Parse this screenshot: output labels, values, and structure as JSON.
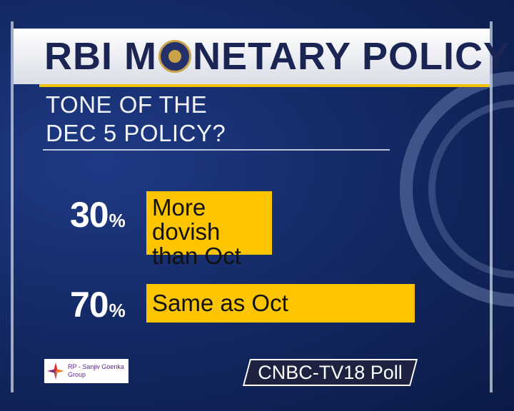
{
  "header": {
    "title_before_logo": "RBI M",
    "title_after_logo": "NETARY POLICY"
  },
  "question": {
    "lines": [
      "TONE OF THE",
      "DEC 5 POLICY?"
    ]
  },
  "results": [
    {
      "value": "30",
      "unit": "%",
      "answer_lines": [
        "More dovish",
        "than Oct"
      ]
    },
    {
      "value": "70",
      "unit": "%",
      "answer_lines": [
        "Same as Oct"
      ]
    }
  ],
  "sponsor": {
    "lines": [
      "RP - Sanjiv Goenka",
      "Group"
    ]
  },
  "source": "CNBC-TV18 Poll"
}
